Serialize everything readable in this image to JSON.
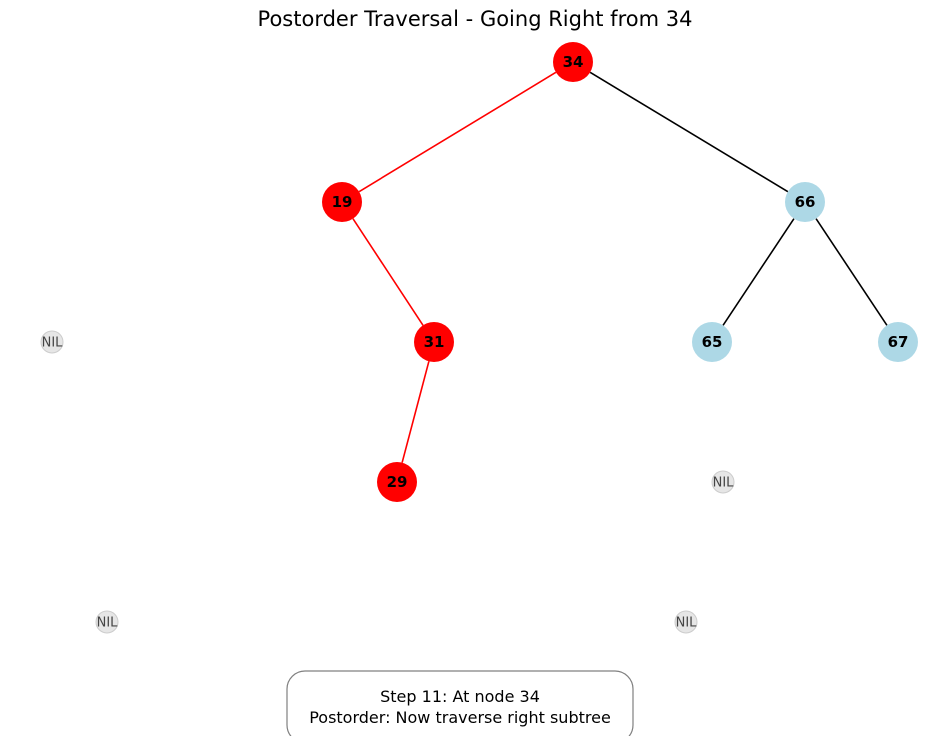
{
  "title": "Postorder Traversal - Going Right from 34",
  "colors": {
    "active_node": "#ff0000",
    "active_edge": "#ff0000",
    "default_node": "#add8e6",
    "default_edge": "#000000",
    "nil_node": "#e6e6e6",
    "nil_border": "#cccccc",
    "nil_text": "#444444",
    "info_border": "#808080"
  },
  "nodes": [
    {
      "id": "34",
      "label": "34",
      "state": "active"
    },
    {
      "id": "19",
      "label": "19",
      "state": "active"
    },
    {
      "id": "66",
      "label": "66",
      "state": "default"
    },
    {
      "id": "31",
      "label": "31",
      "state": "active"
    },
    {
      "id": "65",
      "label": "65",
      "state": "default"
    },
    {
      "id": "67",
      "label": "67",
      "state": "default"
    },
    {
      "id": "29",
      "label": "29",
      "state": "active"
    }
  ],
  "nil_nodes": [
    {
      "id": "nil-1",
      "label": "NIL"
    },
    {
      "id": "nil-2",
      "label": "NIL"
    },
    {
      "id": "nil-3",
      "label": "NIL"
    },
    {
      "id": "nil-4",
      "label": "NIL"
    }
  ],
  "edges": [
    {
      "from": "34",
      "to": "19",
      "state": "active"
    },
    {
      "from": "34",
      "to": "66",
      "state": "default"
    },
    {
      "from": "19",
      "to": "31",
      "state": "active"
    },
    {
      "from": "31",
      "to": "29",
      "state": "active"
    },
    {
      "from": "66",
      "to": "65",
      "state": "default"
    },
    {
      "from": "66",
      "to": "67",
      "state": "default"
    }
  ],
  "info": {
    "line1": "Step 11: At node 34",
    "line2": "Postorder: Now traverse right subtree"
  }
}
